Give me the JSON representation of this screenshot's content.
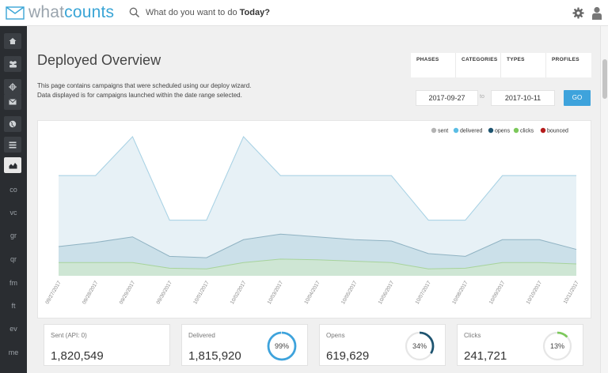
{
  "app": {
    "logo_what": "what",
    "logo_counts": "counts"
  },
  "search": {
    "prefix": "What do you want to do ",
    "emphasis": "Today?"
  },
  "sidebar": {
    "icon_items": [
      "home-icon",
      "users-icon",
      "target-icon",
      "envelope-icon",
      "globe-icon",
      "list-icon",
      "area-chart-icon"
    ],
    "active_item": "area-chart-icon",
    "text_items": [
      "co",
      "vc",
      "gr",
      "qr",
      "fm",
      "ft",
      "ev",
      "me"
    ]
  },
  "page": {
    "title": "Deployed Overview",
    "desc_line1": "This page contains campaigns that were scheduled using our deploy wizard.",
    "desc_line2": "Data displayed is for campaigns launched within the date range selected."
  },
  "filters": {
    "tabs": [
      "PHASES",
      "CATEGORIES",
      "TYPES",
      "PROFILES"
    ]
  },
  "date_range": {
    "start": "2017-09-27",
    "to_label": "to",
    "end": "2017-10-11",
    "go_label": "GO"
  },
  "chart_data": {
    "type": "area",
    "x": [
      "09/27/2017",
      "09/28/2017",
      "09/29/2017",
      "09/30/2017",
      "10/01/2017",
      "10/02/2017",
      "10/03/2017",
      "10/04/2017",
      "10/05/2017",
      "10/06/2017",
      "10/07/2017",
      "10/08/2017",
      "10/09/2017",
      "10/10/2017",
      "10/11/2017"
    ],
    "series": [
      {
        "name": "sent",
        "color": "#b3b3b3",
        "values": [
          0.72,
          0.72,
          1.0,
          0.4,
          0.4,
          1.0,
          0.72,
          0.72,
          0.72,
          0.72,
          0.4,
          0.4,
          0.72,
          0.72,
          0.72
        ]
      },
      {
        "name": "delivered",
        "color": "#5bbde4",
        "values": [
          0.72,
          0.72,
          1.0,
          0.4,
          0.4,
          1.0,
          0.72,
          0.72,
          0.72,
          0.72,
          0.4,
          0.4,
          0.72,
          0.72,
          0.72
        ]
      },
      {
        "name": "opens",
        "color": "#1e5470",
        "values": [
          0.21,
          0.24,
          0.28,
          0.14,
          0.13,
          0.26,
          0.3,
          0.28,
          0.26,
          0.25,
          0.16,
          0.14,
          0.26,
          0.26,
          0.19
        ]
      },
      {
        "name": "clicks",
        "color": "#7cc85b",
        "values": [
          0.095,
          0.095,
          0.095,
          0.055,
          0.05,
          0.095,
          0.12,
          0.115,
          0.105,
          0.095,
          0.05,
          0.055,
          0.095,
          0.095,
          0.085
        ]
      },
      {
        "name": "bounced",
        "color": "#b51c1c",
        "values": [
          0,
          0,
          0,
          0,
          0,
          0,
          0,
          0,
          0,
          0,
          0,
          0,
          0,
          0,
          0
        ]
      }
    ],
    "legend_position": "top-right",
    "grid": false
  },
  "stats": [
    {
      "label": "Sent (API: 0)",
      "value": "1,820,549"
    },
    {
      "label": "Delivered",
      "value": "1,815,920",
      "percent_label": "99%",
      "fraction": 0.99,
      "ring_color": "#3ea3dc"
    },
    {
      "label": "Opens",
      "value": "619,629",
      "percent_label": "34%",
      "fraction": 0.34,
      "ring_color": "#1e5470"
    },
    {
      "label": "Clicks",
      "value": "241,721",
      "percent_label": "13%",
      "fraction": 0.13,
      "ring_color": "#7cc85b"
    }
  ]
}
